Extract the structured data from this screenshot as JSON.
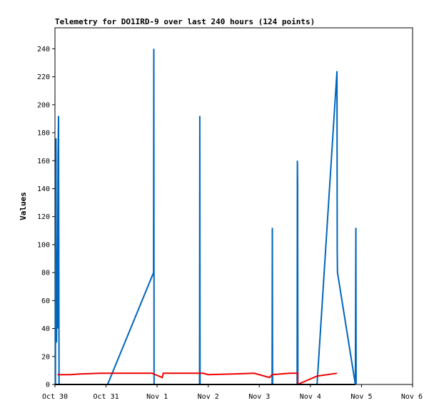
{
  "chart_data": {
    "type": "line",
    "title": "Telemetry for DO1IRD-9 over last 240 hours (124 points)",
    "ylabel": "Values",
    "xlabel": "",
    "ylim": [
      0,
      255
    ],
    "yticks": [
      0,
      20,
      40,
      60,
      80,
      100,
      120,
      140,
      160,
      180,
      200,
      220,
      240
    ],
    "x_unit": "days since Oct 30",
    "xlim": [
      0,
      7
    ],
    "xticks": [
      {
        "label": "Oct 30",
        "x": 0
      },
      {
        "label": "Oct 31",
        "x": 1
      },
      {
        "label": "Nov 1",
        "x": 2
      },
      {
        "label": "Nov 2",
        "x": 3
      },
      {
        "label": "Nov 3",
        "x": 4
      },
      {
        "label": "Nov 4",
        "x": 5
      },
      {
        "label": "Nov 5",
        "x": 6
      },
      {
        "label": "Nov 6",
        "x": 7
      }
    ],
    "grid": false,
    "series": [
      {
        "name": "",
        "color": "#0066bb",
        "points": [
          [
            0.01,
            0
          ],
          [
            0.01,
            48
          ],
          [
            0.02,
            176
          ],
          [
            0.03,
            30
          ],
          [
            0.04,
            96
          ],
          [
            0.05,
            40
          ],
          [
            0.06,
            160
          ],
          [
            0.07,
            192
          ],
          [
            0.08,
            0
          ],
          [
            1.03,
            0
          ],
          [
            1.93,
            80
          ],
          [
            1.935,
            240
          ],
          [
            1.94,
            0
          ],
          [
            2.83,
            0
          ],
          [
            2.835,
            192
          ],
          [
            2.84,
            0
          ],
          [
            4.25,
            0
          ],
          [
            4.255,
            112
          ],
          [
            4.26,
            0
          ],
          [
            4.74,
            0
          ],
          [
            4.745,
            160
          ],
          [
            4.75,
            145
          ],
          [
            4.755,
            0
          ],
          [
            5.13,
            0
          ],
          [
            5.52,
            224
          ],
          [
            5.525,
            96
          ],
          [
            5.53,
            80
          ],
          [
            5.88,
            0
          ],
          [
            5.885,
            56
          ],
          [
            5.89,
            112
          ],
          [
            5.895,
            0
          ]
        ]
      },
      {
        "name": "",
        "color": "#ee0000",
        "points": [
          [
            0.05,
            7
          ],
          [
            0.3,
            7
          ],
          [
            0.5,
            7.5
          ],
          [
            0.9,
            8
          ],
          [
            1.9,
            8
          ],
          [
            2.0,
            6.5
          ],
          [
            2.1,
            5
          ],
          [
            2.12,
            8
          ],
          [
            2.9,
            8
          ],
          [
            3.0,
            7
          ],
          [
            3.5,
            7.5
          ],
          [
            3.9,
            8
          ],
          [
            4.2,
            5
          ],
          [
            4.25,
            7
          ],
          [
            4.6,
            8
          ],
          [
            4.75,
            8
          ],
          [
            4.75,
            0
          ],
          [
            5.13,
            6
          ],
          [
            5.52,
            8
          ]
        ]
      },
      {
        "name": "",
        "color": "#000000",
        "points": [
          [
            0.0,
            0
          ],
          [
            5.88,
            0
          ]
        ]
      }
    ]
  }
}
